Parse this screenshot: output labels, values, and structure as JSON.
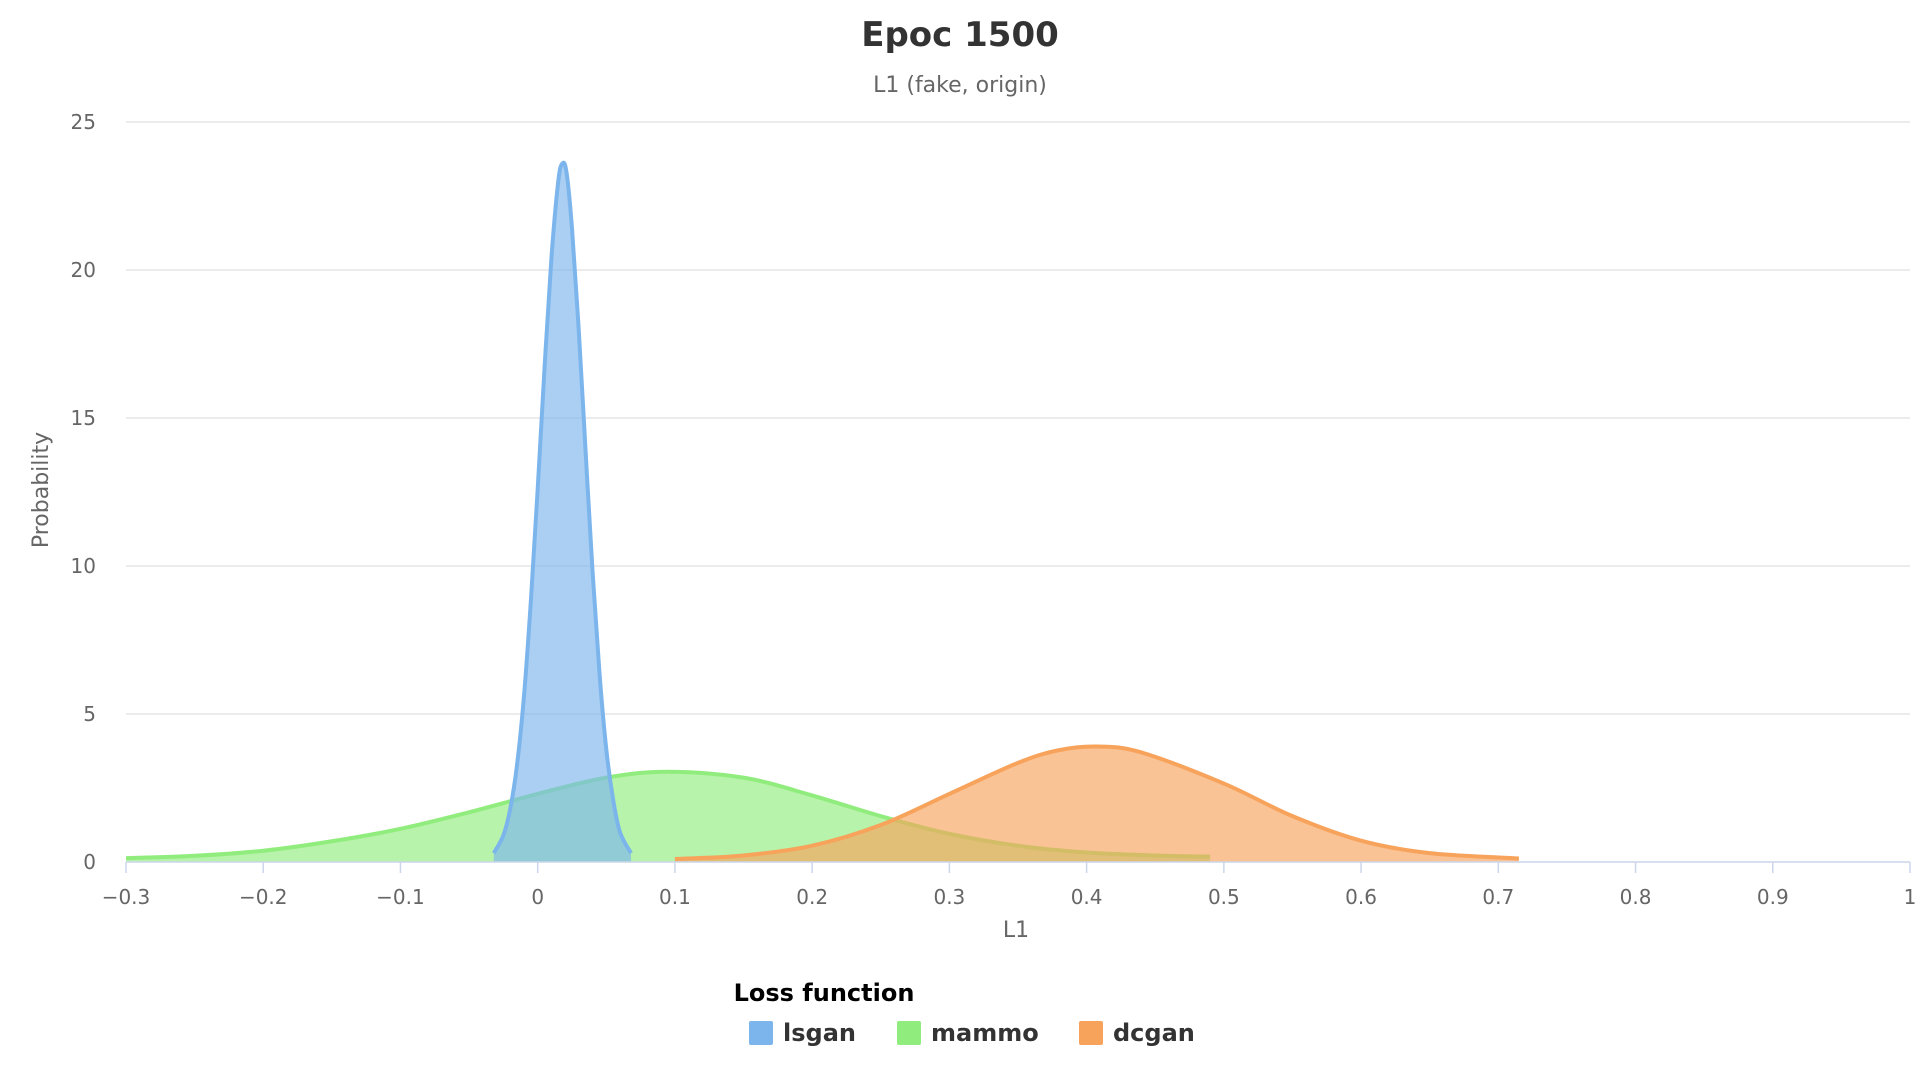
{
  "chart_data": {
    "type": "area",
    "title": "Epoc 1500",
    "subtitle": "L1 (fake, origin)",
    "xlabel": "L1",
    "ylabel": "Probability",
    "xlim": [
      -0.3,
      1
    ],
    "ylim": [
      0,
      25
    ],
    "x_ticks": [
      -0.3,
      -0.2,
      -0.1,
      0,
      0.1,
      0.2,
      0.3,
      0.4,
      0.5,
      0.6,
      0.7,
      0.8,
      0.9,
      1
    ],
    "x_tick_labels": [
      "−0.3",
      "−0.2",
      "−0.1",
      "0",
      "0.1",
      "0.2",
      "0.3",
      "0.4",
      "0.5",
      "0.6",
      "0.7",
      "0.8",
      "0.9",
      "1"
    ],
    "y_ticks": [
      0,
      5,
      10,
      15,
      20,
      25
    ],
    "y_tick_labels": [
      "0",
      "5",
      "10",
      "15",
      "20",
      "25"
    ],
    "grid": "horizontal",
    "legend": {
      "title": "Loss function",
      "position": "bottom-center"
    },
    "series": [
      {
        "name": "lsgan",
        "color": "#7cb5ec",
        "x": [
          -0.032,
          -0.025,
          -0.02,
          -0.015,
          -0.01,
          -0.005,
          0.0,
          0.005,
          0.01,
          0.015,
          0.018,
          0.021,
          0.025,
          0.03,
          0.035,
          0.04,
          0.045,
          0.05,
          0.055,
          0.06,
          0.068
        ],
        "y": [
          0.3,
          0.9,
          1.8,
          3.3,
          5.6,
          8.8,
          12.6,
          16.7,
          20.4,
          23.0,
          23.6,
          23.3,
          21.4,
          17.9,
          13.8,
          9.8,
          6.4,
          3.8,
          2.1,
          1.0,
          0.3
        ]
      },
      {
        "name": "mammo",
        "color": "#90ed7d",
        "x": [
          -0.3,
          -0.25,
          -0.2,
          -0.15,
          -0.1,
          -0.05,
          0.0,
          0.05,
          0.095,
          0.15,
          0.2,
          0.25,
          0.3,
          0.35,
          0.4,
          0.45,
          0.49
        ],
        "y": [
          0.13,
          0.21,
          0.38,
          0.7,
          1.12,
          1.68,
          2.3,
          2.85,
          3.05,
          2.85,
          2.25,
          1.55,
          0.95,
          0.55,
          0.32,
          0.22,
          0.18
        ]
      },
      {
        "name": "dcgan",
        "color": "#f7a35c",
        "x": [
          0.1,
          0.15,
          0.2,
          0.25,
          0.3,
          0.35,
          0.38,
          0.408,
          0.44,
          0.5,
          0.55,
          0.6,
          0.65,
          0.715
        ],
        "y": [
          0.1,
          0.22,
          0.55,
          1.25,
          2.3,
          3.35,
          3.78,
          3.9,
          3.7,
          2.65,
          1.55,
          0.72,
          0.3,
          0.12
        ]
      }
    ]
  }
}
